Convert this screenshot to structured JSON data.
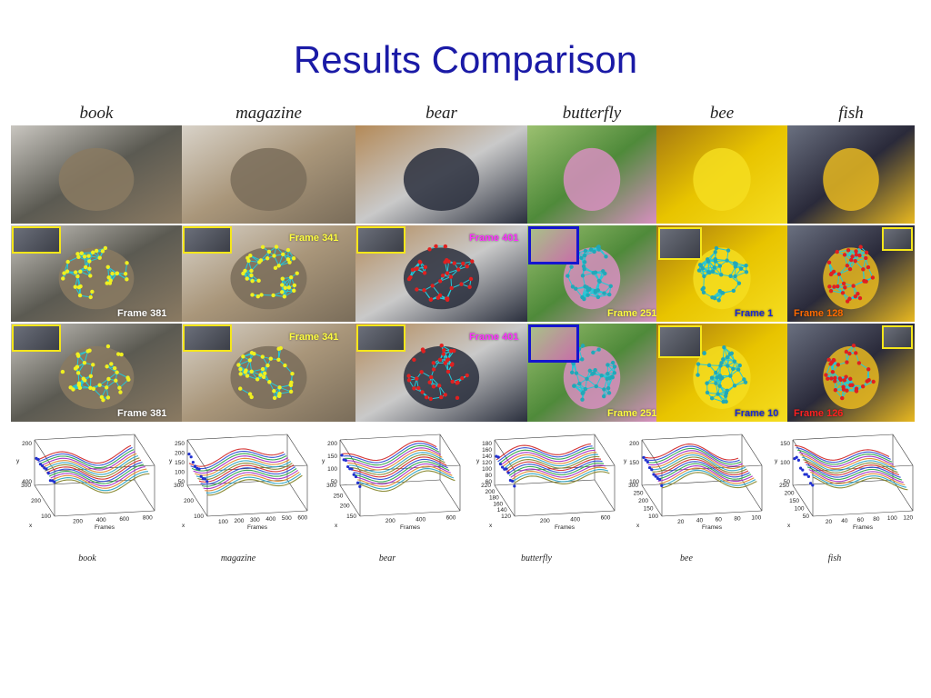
{
  "title": "Results Comparison",
  "columns": [
    {
      "id": "book",
      "label": "book",
      "caption": "book",
      "frames": [
        {
          "label": "Frame 381",
          "color": "#ffffff"
        },
        {
          "label": "Frame 381",
          "color": "#ffffff"
        }
      ]
    },
    {
      "id": "magazine",
      "label": "magazine",
      "caption": "magazine",
      "frames": [
        {
          "label": "Frame 341",
          "color": "#ffff40"
        },
        {
          "label": "Frame 341",
          "color": "#ffff40"
        }
      ]
    },
    {
      "id": "bear",
      "label": "bear",
      "caption": "bear",
      "frames": [
        {
          "label": "Frame 401",
          "color": "#ff30ff"
        },
        {
          "label": "Frame 401",
          "color": "#ff30ff"
        }
      ]
    },
    {
      "id": "butterfly",
      "label": "butterfly",
      "caption": "butterfly",
      "frames": [
        {
          "label": "Frame 251",
          "color": "#ffff40"
        },
        {
          "label": "Frame 251",
          "color": "#ffff40"
        }
      ]
    },
    {
      "id": "bee",
      "label": "bee",
      "caption": "bee",
      "frames": [
        {
          "label": "Frame 1",
          "color": "#1a2ad0"
        },
        {
          "label": "Frame 10",
          "color": "#1a2ad0"
        }
      ]
    },
    {
      "id": "fish",
      "label": "fish",
      "caption": "fish",
      "frames": [
        {
          "label": "Frame 128",
          "color": "#ff6a00"
        },
        {
          "label": "Frame 126",
          "color": "#ff2020"
        }
      ]
    }
  ],
  "colors": {
    "title": "#1a1aa6",
    "mesh_cyan": "#25c8d8",
    "mesh_yellow": "#f0f020",
    "mesh_red": "#e02020",
    "inset_yellow": "#f5e61a",
    "inset_blue": "#1515d0"
  },
  "chart_data": [
    {
      "type": "line",
      "name": "book",
      "xlabel": "Frames",
      "ylabel": "y",
      "zlabel": "x",
      "x_ticks": [
        "200",
        "400",
        "600",
        "800"
      ],
      "y_ticks": [
        "200",
        "400"
      ],
      "z_ticks": [
        "100",
        "200",
        "300"
      ]
    },
    {
      "type": "line",
      "name": "magazine",
      "xlabel": "Frames",
      "ylabel": "y",
      "zlabel": "x",
      "x_ticks": [
        "100",
        "200",
        "300",
        "400",
        "500",
        "600"
      ],
      "y_ticks": [
        "250",
        "200",
        "150",
        "100",
        "50"
      ],
      "z_ticks": [
        "100",
        "200",
        "300"
      ]
    },
    {
      "type": "line",
      "name": "bear",
      "xlabel": "Frames",
      "ylabel": "y",
      "zlabel": "x",
      "x_ticks": [
        "200",
        "400",
        "600"
      ],
      "y_ticks": [
        "200",
        "150",
        "100",
        "50"
      ],
      "z_ticks": [
        "150",
        "200",
        "250",
        "300"
      ]
    },
    {
      "type": "line",
      "name": "butterfly",
      "xlabel": "Frames",
      "ylabel": "y",
      "zlabel": "x",
      "x_ticks": [
        "200",
        "400",
        "600"
      ],
      "y_ticks": [
        "180",
        "160",
        "140",
        "120",
        "100",
        "80",
        "60"
      ],
      "z_ticks": [
        "120",
        "140",
        "160",
        "180",
        "200",
        "220"
      ]
    },
    {
      "type": "line",
      "name": "bee",
      "xlabel": "Frames",
      "ylabel": "y",
      "zlabel": "x",
      "x_ticks": [
        "20",
        "40",
        "60",
        "80",
        "100"
      ],
      "y_ticks": [
        "200",
        "150",
        "100"
      ],
      "z_ticks": [
        "100",
        "150",
        "200",
        "250",
        "300"
      ]
    },
    {
      "type": "line",
      "name": "fish",
      "xlabel": "Frames",
      "ylabel": "y",
      "zlabel": "x",
      "x_ticks": [
        "20",
        "40",
        "60",
        "80",
        "100",
        "120"
      ],
      "y_ticks": [
        "150",
        "100",
        "50"
      ],
      "z_ticks": [
        "50",
        "100",
        "150",
        "200",
        "250"
      ]
    }
  ]
}
